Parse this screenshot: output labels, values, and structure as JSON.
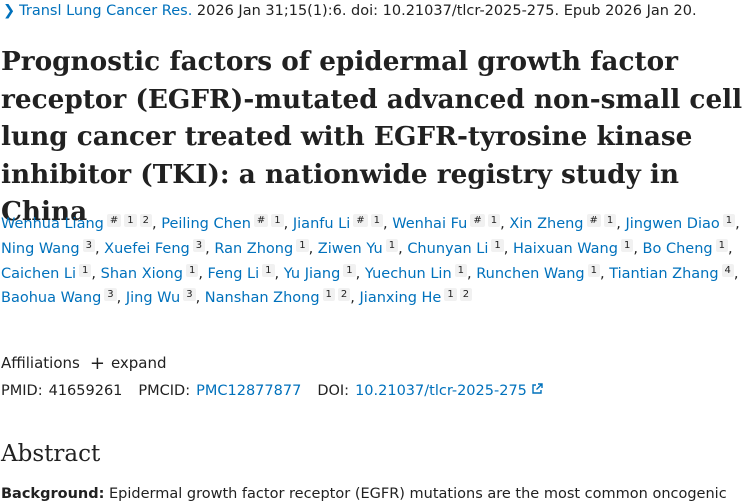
{
  "citation": {
    "journal": "Transl Lung Cancer Res.",
    "details": " 2026 Jan 31;15(1):6. doi: 10.21037/tlcr-2025-275. Epub 2026 Jan 20."
  },
  "title": "Prognostic factors of epidermal growth factor receptor (EGFR)-mutated advanced non-small cell lung cancer treated with EGFR-tyrosine kinase inhibitor (TKI): a nationwide registry study in China",
  "authors": [
    {
      "name": "Wenhua Liang",
      "sups": [
        "#",
        "1",
        "2"
      ]
    },
    {
      "name": "Peiling Chen",
      "sups": [
        "#",
        "1"
      ]
    },
    {
      "name": "Jianfu Li",
      "sups": [
        "#",
        "1"
      ]
    },
    {
      "name": "Wenhai Fu",
      "sups": [
        "#",
        "1"
      ]
    },
    {
      "name": "Xin Zheng",
      "sups": [
        "#",
        "1"
      ]
    },
    {
      "name": "Jingwen Diao",
      "sups": [
        "1"
      ]
    },
    {
      "name": "Ning Wang",
      "sups": [
        "3"
      ]
    },
    {
      "name": "Xuefei Feng",
      "sups": [
        "3"
      ]
    },
    {
      "name": "Ran Zhong",
      "sups": [
        "1"
      ]
    },
    {
      "name": "Ziwen Yu",
      "sups": [
        "1"
      ]
    },
    {
      "name": "Chunyan Li",
      "sups": [
        "1"
      ]
    },
    {
      "name": "Haixuan Wang",
      "sups": [
        "1"
      ]
    },
    {
      "name": "Bo Cheng",
      "sups": [
        "1"
      ]
    },
    {
      "name": "Caichen Li",
      "sups": [
        "1"
      ]
    },
    {
      "name": "Shan Xiong",
      "sups": [
        "1"
      ]
    },
    {
      "name": "Feng Li",
      "sups": [
        "1"
      ]
    },
    {
      "name": "Yu Jiang",
      "sups": [
        "1"
      ]
    },
    {
      "name": "Yuechun Lin",
      "sups": [
        "1"
      ]
    },
    {
      "name": "Runchen Wang",
      "sups": [
        "1"
      ]
    },
    {
      "name": "Tiantian Zhang",
      "sups": [
        "4"
      ]
    },
    {
      "name": "Baohua Wang",
      "sups": [
        "3"
      ]
    },
    {
      "name": "Jing Wu",
      "sups": [
        "3"
      ]
    },
    {
      "name": "Nanshan Zhong",
      "sups": [
        "1",
        "2"
      ]
    },
    {
      "name": "Jianxing He",
      "sups": [
        "1",
        "2"
      ]
    }
  ],
  "affiliations": {
    "label": "Affiliations",
    "expand_label": "expand"
  },
  "ids": {
    "pmid_label": "PMID:",
    "pmid": "41659261",
    "pmcid_label": "PMCID:",
    "pmcid": "PMC12877877",
    "doi_label": "DOI:",
    "doi": "10.21037/tlcr-2025-275"
  },
  "abstract_heading": "Abstract",
  "background": {
    "label": "Background:",
    "text": " Epidermal growth factor receptor (EGFR) mutations are the most common oncogenic"
  },
  "colors": {
    "link": "#0071bc",
    "text": "#212121",
    "sup_bg": "#f1f1f1"
  }
}
